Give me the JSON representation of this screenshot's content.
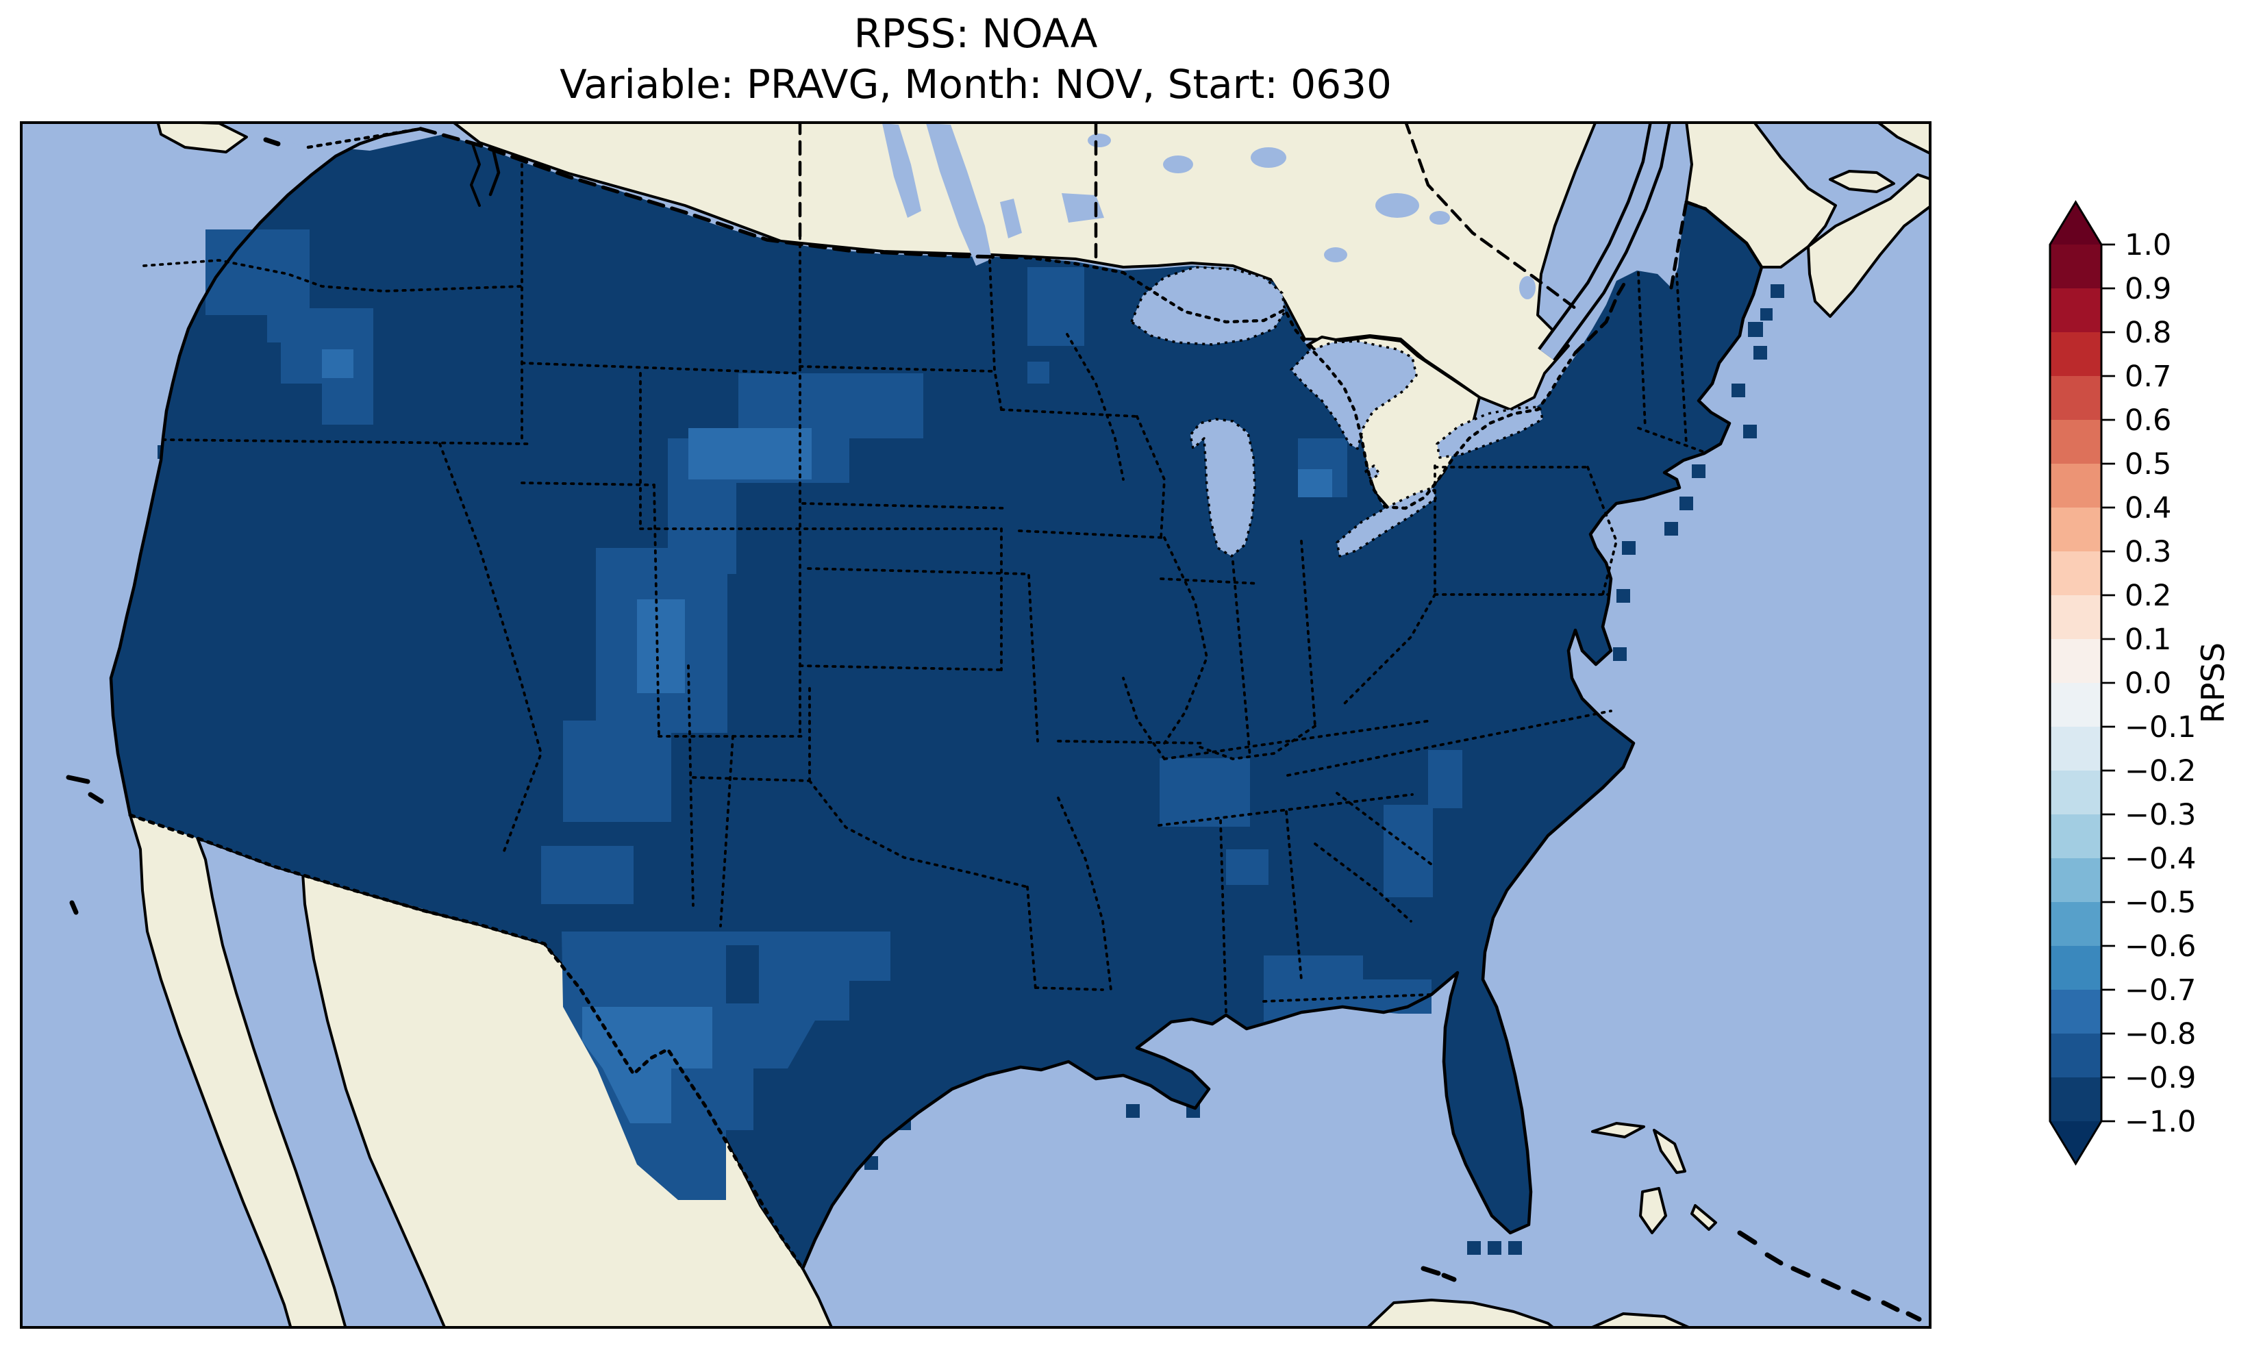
{
  "figure": {
    "title_line1": "RPSS: NOAA",
    "title_line2": "Variable: PRAVG, Month: NOV, Start: 0630"
  },
  "colorbar": {
    "label": "RPSS",
    "orientation": "vertical",
    "extend": "both",
    "tick_labels": [
      "1.0",
      "0.9",
      "0.8",
      "0.7",
      "0.6",
      "0.5",
      "0.4",
      "0.3",
      "0.2",
      "0.1",
      "0.0",
      "−0.1",
      "−0.2",
      "−0.3",
      "−0.4",
      "−0.5",
      "−0.6",
      "−0.7",
      "−0.8",
      "−0.9",
      "−1.0"
    ],
    "band_colors_top_to_bottom": [
      "#7a0622",
      "#9f1228",
      "#bb2a2c",
      "#cd4e44",
      "#dd715a",
      "#ec9475",
      "#f6b393",
      "#fbceb6",
      "#fbe2d3",
      "#f8f0eb",
      "#edf2f5",
      "#dae9f2",
      "#c1ddeb",
      "#a2cde2",
      "#7eb8d7",
      "#57a0ca",
      "#3a88bd",
      "#2b6dad",
      "#1a5490",
      "#0d3d6f"
    ],
    "arrow_top_color": "#67001f",
    "arrow_bottom_color": "#053061"
  },
  "map": {
    "colors": {
      "ocean": "#9db7e0",
      "land": "#f0eedb",
      "rpss_band_m10_m09": "#0d3d6f",
      "rpss_band_m09_m08": "#1a5490",
      "rpss_band_m08_m07": "#2b6dad",
      "outline": "#000000"
    }
  },
  "chart_data": {
    "type": "heatmap",
    "title": "RPSS: NOAA",
    "subtitle": "Variable: PRAVG, Month: NOV, Start: 0630",
    "variable": "PRAVG",
    "month": "NOV",
    "start": "0630",
    "region_shown": "Contiguous United States (with southern Canada, northern Mexico, Bahamas and Cuba visible)",
    "colormap": "RdBu_r, 20 discrete bands",
    "colorbar_label": "RPSS",
    "colorbar_range": [
      -1.0,
      1.0
    ],
    "colorbar_tick_step": 0.1,
    "legend_position": "right",
    "values_summary": "RPSS is negative everywhere over CONUS; no positive (red) values appear on the map.",
    "regions": [
      {
        "area": "Most of the contiguous United States",
        "rpss_range": [
          -1.0,
          -0.9
        ]
      },
      {
        "area": "Central High Plains (SD/NE/CO/KS swath)",
        "rpss_range": [
          -0.9,
          -0.7
        ]
      },
      {
        "area": "West and south Texas along the Rio Grande",
        "rpss_range": [
          -0.9,
          -0.7
        ]
      },
      {
        "area": "North-central Washington and central WA/OR border",
        "rpss_range": [
          -0.9,
          -0.8
        ]
      },
      {
        "area": "Northern Minnesota",
        "rpss_range": [
          -0.9,
          -0.8
        ]
      },
      {
        "area": "Tennessee / middle Tennessee valley",
        "rpss_range": [
          -0.9,
          -0.8
        ]
      },
      {
        "area": "Coastal Carolinas",
        "rpss_range": [
          -0.9,
          -0.8
        ]
      },
      {
        "area": "Florida panhandle and south Alabama/Georgia",
        "rpss_range": [
          -0.9,
          -0.8
        ]
      },
      {
        "area": "Saginaw area of lower Michigan",
        "rpss_range": [
          -0.9,
          -0.7
        ]
      }
    ]
  }
}
